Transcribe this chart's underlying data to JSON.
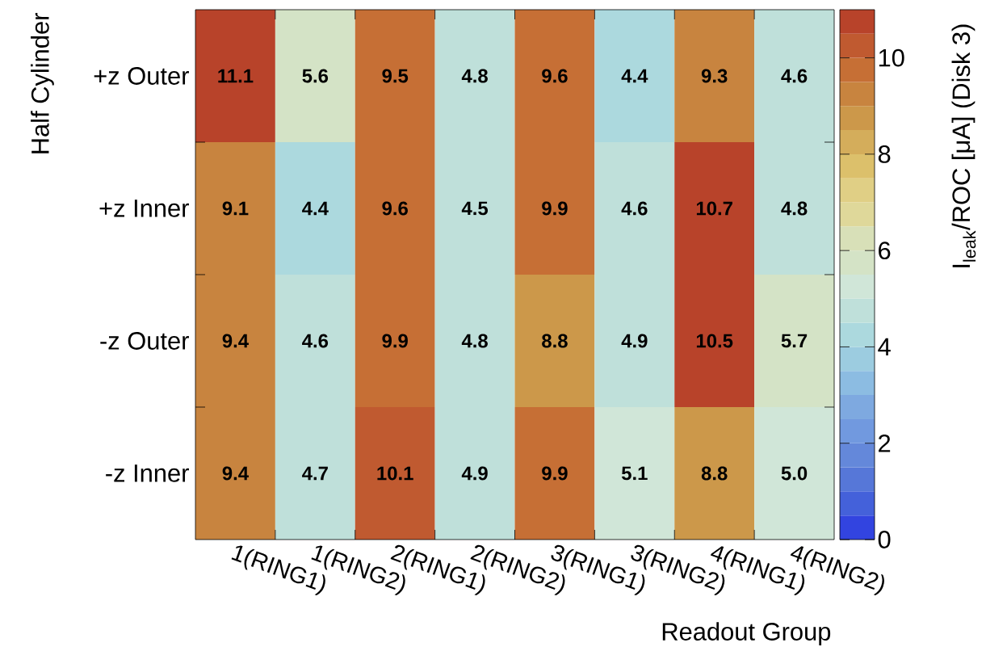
{
  "chart_data": {
    "type": "heatmap",
    "xlabel": "Readout Group",
    "ylabel": "Half Cylinder",
    "clabel": "I$_{leak}$/ROC [μA] (Disk 3)",
    "categories": [
      "1(RING1)",
      "1(RING2)",
      "2(RING1)",
      "2(RING2)",
      "3(RING1)",
      "3(RING2)",
      "4(RING1)",
      "4(RING2)"
    ],
    "y_categories": [
      "+z Outer",
      "+z Inner",
      "-z Outer",
      "-z Inner"
    ],
    "cells": [
      [
        11.1,
        5.6,
        9.5,
        4.8,
        9.6,
        4.4,
        9.3,
        4.6
      ],
      [
        9.1,
        4.4,
        9.6,
        4.5,
        9.9,
        4.6,
        10.7,
        4.8
      ],
      [
        9.4,
        4.6,
        9.9,
        4.8,
        8.8,
        4.9,
        10.5,
        5.7
      ],
      [
        9.4,
        4.7,
        10.1,
        4.9,
        9.9,
        5.1,
        8.8,
        5.0
      ]
    ],
    "cell_labels": [
      [
        "11.1",
        "5.6",
        "9.5",
        "4.8",
        "9.6",
        "4.4",
        "9.3",
        "4.6"
      ],
      [
        "9.1",
        "4.4",
        "9.6",
        "4.5",
        "9.9",
        "4.6",
        "10.7",
        "4.8"
      ],
      [
        "9.4",
        "4.6",
        "9.9",
        "4.8",
        "8.8",
        "4.9",
        "10.5",
        "5.7"
      ],
      [
        "9.4",
        "4.7",
        "10.1",
        "4.9",
        "9.9",
        "5.1",
        "8.8",
        "5.0"
      ]
    ],
    "clim": [
      0,
      11
    ],
    "cticks": [
      0,
      2,
      4,
      6,
      8,
      10
    ]
  }
}
